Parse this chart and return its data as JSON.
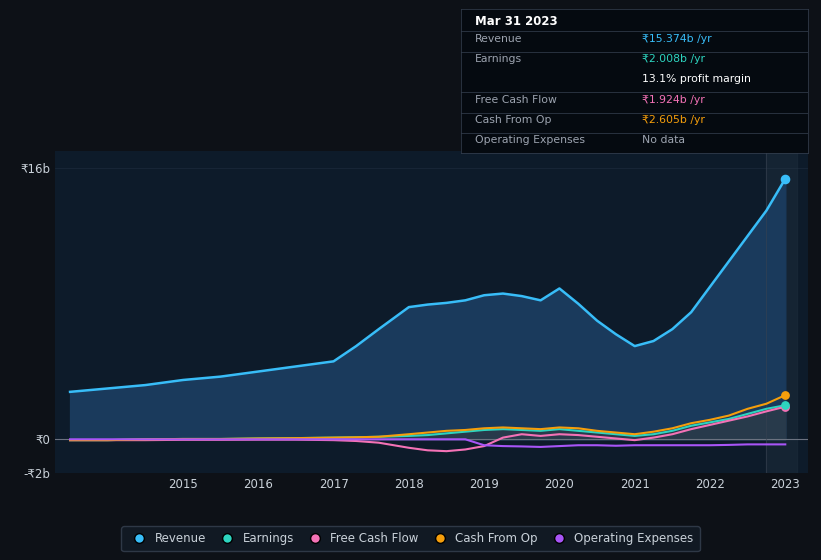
{
  "bg_color": "#0d1117",
  "plot_bg_color": "#0d1b2a",
  "grid_color": "#263547",
  "text_color": "#9ca3af",
  "years": [
    2013.5,
    2014.0,
    2014.5,
    2015.0,
    2015.5,
    2016.0,
    2016.5,
    2017.0,
    2017.3,
    2017.6,
    2018.0,
    2018.25,
    2018.5,
    2018.75,
    2019.0,
    2019.25,
    2019.5,
    2019.75,
    2020.0,
    2020.25,
    2020.5,
    2020.75,
    2021.0,
    2021.25,
    2021.5,
    2021.75,
    2022.0,
    2022.25,
    2022.5,
    2022.75,
    2023.0
  ],
  "revenue": [
    2.8,
    3.0,
    3.2,
    3.5,
    3.7,
    4.0,
    4.3,
    4.6,
    5.5,
    6.5,
    7.8,
    7.95,
    8.05,
    8.2,
    8.5,
    8.6,
    8.45,
    8.2,
    8.9,
    8.0,
    7.0,
    6.2,
    5.5,
    5.8,
    6.5,
    7.5,
    9.0,
    10.5,
    12.0,
    13.5,
    15.374
  ],
  "earnings": [
    -0.05,
    -0.05,
    0.0,
    0.02,
    0.02,
    0.05,
    0.07,
    0.1,
    0.12,
    0.15,
    0.2,
    0.25,
    0.35,
    0.45,
    0.55,
    0.6,
    0.55,
    0.5,
    0.6,
    0.5,
    0.4,
    0.3,
    0.2,
    0.3,
    0.5,
    0.8,
    1.0,
    1.2,
    1.5,
    1.8,
    2.008
  ],
  "free_cash_flow": [
    -0.05,
    -0.05,
    -0.05,
    -0.03,
    -0.03,
    -0.02,
    -0.02,
    -0.05,
    -0.1,
    -0.2,
    -0.5,
    -0.65,
    -0.7,
    -0.6,
    -0.4,
    0.1,
    0.3,
    0.2,
    0.3,
    0.25,
    0.15,
    0.05,
    -0.05,
    0.1,
    0.3,
    0.6,
    0.85,
    1.1,
    1.35,
    1.65,
    1.924
  ],
  "cash_from_op": [
    -0.05,
    -0.05,
    0.0,
    0.02,
    0.02,
    0.05,
    0.07,
    0.1,
    0.12,
    0.15,
    0.3,
    0.4,
    0.5,
    0.55,
    0.65,
    0.7,
    0.65,
    0.6,
    0.7,
    0.65,
    0.5,
    0.4,
    0.3,
    0.45,
    0.65,
    0.95,
    1.15,
    1.4,
    1.8,
    2.1,
    2.605
  ],
  "op_expenses": [
    0.0,
    0.0,
    0.0,
    0.0,
    0.0,
    0.0,
    0.0,
    0.0,
    0.0,
    0.0,
    0.0,
    0.0,
    0.0,
    0.0,
    -0.35,
    -0.4,
    -0.42,
    -0.45,
    -0.4,
    -0.35,
    -0.35,
    -0.38,
    -0.35,
    -0.35,
    -0.35,
    -0.35,
    -0.35,
    -0.33,
    -0.3,
    -0.3,
    -0.3
  ],
  "revenue_color": "#38bdf8",
  "revenue_fill": "#1a3a5c",
  "earnings_color": "#2dd4bf",
  "free_cash_flow_color": "#f472b6",
  "cash_from_op_color": "#f59e0b",
  "op_expenses_color": "#a855f7",
  "tooltip_bg": "#050a10",
  "tooltip_border": "#374151",
  "tooltip_title": "Mar 31 2023",
  "tooltip_text_color": "#9ca3af",
  "tooltip_revenue_color": "#38bdf8",
  "tooltip_earnings_color": "#2dd4bf",
  "tooltip_fcf_color": "#f472b6",
  "tooltip_cashop_color": "#f59e0b",
  "legend_items": [
    "Revenue",
    "Earnings",
    "Free Cash Flow",
    "Cash From Op",
    "Operating Expenses"
  ],
  "legend_colors": [
    "#38bdf8",
    "#2dd4bf",
    "#f472b6",
    "#f59e0b",
    "#a855f7"
  ]
}
